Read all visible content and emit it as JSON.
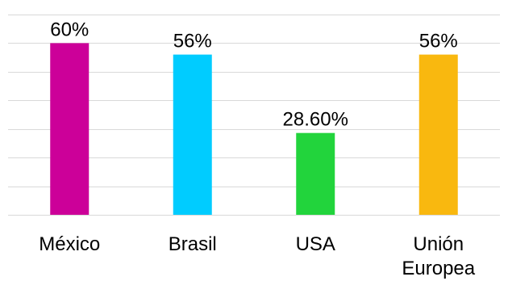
{
  "chart_data": {
    "type": "bar",
    "categories": [
      "México",
      "Brasil",
      "USA",
      "Unión Europea"
    ],
    "category_lines": [
      [
        "México"
      ],
      [
        "Brasil"
      ],
      [
        "USA"
      ],
      [
        "Unión",
        "Europea"
      ]
    ],
    "values": [
      60,
      56,
      28.6,
      56
    ],
    "data_labels": [
      "60%",
      "56%",
      "28.60%",
      "56%"
    ],
    "colors": [
      "#cc0099",
      "#00ccff",
      "#22d43c",
      "#f9b80f"
    ],
    "ylim": [
      0,
      70
    ],
    "y_grid_step": 10,
    "grid": true,
    "legend": "none",
    "title": "",
    "xlabel": "",
    "ylabel": ""
  }
}
